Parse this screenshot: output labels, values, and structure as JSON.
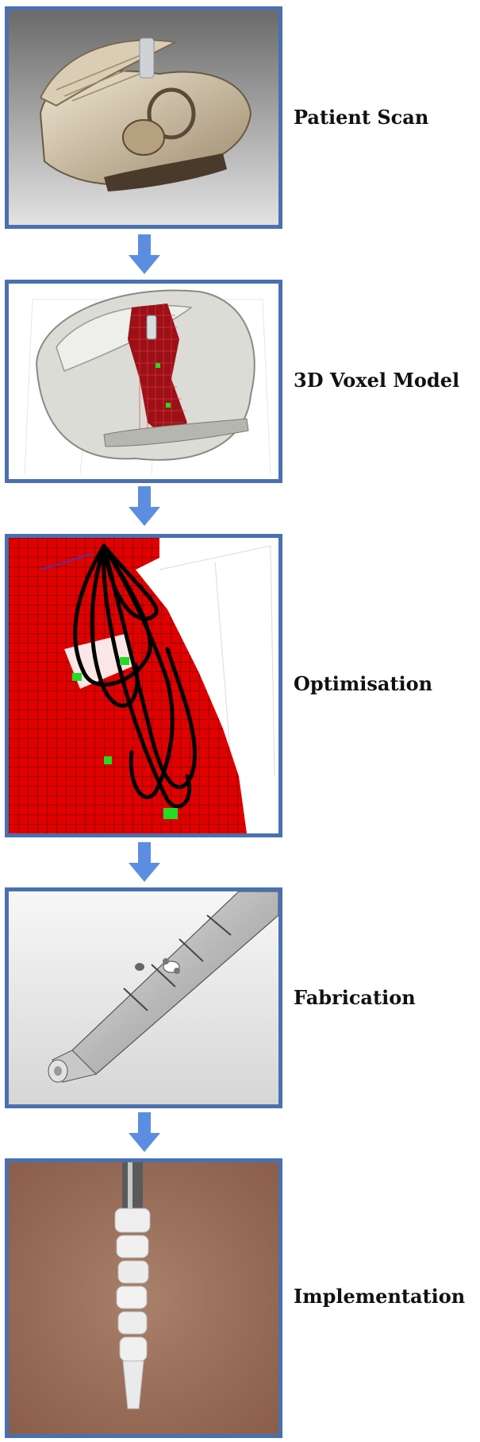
{
  "steps": [
    {
      "label": "Patient Scan"
    },
    {
      "label": "3D Voxel Model"
    },
    {
      "label": "Optimisation"
    },
    {
      "label": "Fabrication"
    },
    {
      "label": "Implementation"
    }
  ],
  "colors": {
    "frame_border": "#4a70b0",
    "arrow": "#5b8ee0",
    "voxel_red": "#e00000",
    "voxel_dark_red": "#9c1018",
    "highlight_green": "#22dd22",
    "path_black": "#000000",
    "bone": "#d8ccb4",
    "tissue": "#a87860"
  },
  "icons": {
    "arrow": "arrow-down-icon"
  }
}
